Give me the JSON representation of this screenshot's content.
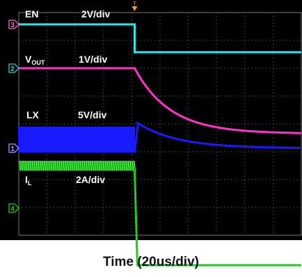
{
  "chart_data": {
    "type": "line",
    "instrument": "oscilloscope",
    "grid": true,
    "xlabel": "Time (20us/div)",
    "time_divisions": 10,
    "vertical_divisions": 8,
    "trigger_marker": "T",
    "event_time_div": 4.1,
    "channels": [
      {
        "id": "1",
        "name": "LX",
        "scale": "5V/div",
        "color": "#1a1aff",
        "marker_color": "#9999ff",
        "before": "switching (high-frequency square wave)",
        "after": {
          "initial_value_div": 0.9,
          "final_value_div": 0.0,
          "decay": "exponential"
        }
      },
      {
        "id": "2",
        "name": "V",
        "sub": "OUT",
        "scale": "1V/div",
        "color": "#ff33cc",
        "marker_color": "#33cccc",
        "before_level_div": 0.0,
        "after": {
          "final_value_div": -2.35,
          "decay": "exponential"
        }
      },
      {
        "id": "3",
        "name": "EN",
        "scale": "2V/div",
        "color": "#33e6e6",
        "marker_color": "#ff66cc",
        "before_level_div": 0.0,
        "after": {
          "level_div": -1.0
        }
      },
      {
        "id": "4",
        "name": "I",
        "sub": "L",
        "scale": "2A/div",
        "color": "#22cc22",
        "marker_color": "#22cc22",
        "before_level_div": 0.0,
        "after": {
          "level_div": -2.05
        }
      }
    ]
  }
}
